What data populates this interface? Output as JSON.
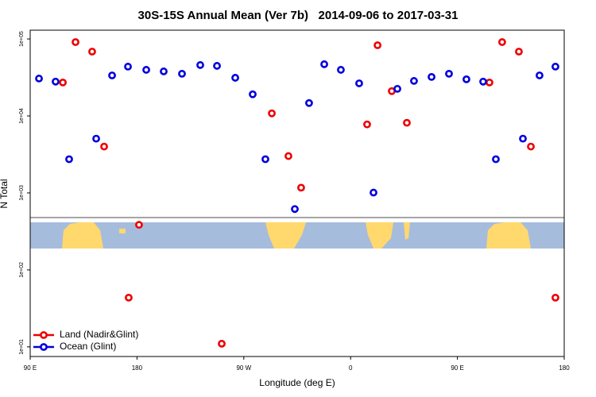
{
  "chart_data": {
    "type": "scatter",
    "title": "30S-15S Annual Mean (Ver 7b)   2014-09-06 to 2017-03-31",
    "x_label": "Longitude (deg E)",
    "y_label": "N Total",
    "xlim": [
      90,
      540
    ],
    "xticks": [
      {
        "value": 90,
        "label": "90 E"
      },
      180,
      {
        "value": 270,
        "label": "90 W"
      },
      {
        "value": 360,
        "label": "0"
      },
      {
        "value": 450,
        "label": "90 E"
      },
      {
        "value": 540,
        "label": "180"
      }
    ],
    "ylim": [
      7.5,
      130000
    ],
    "log_y": true,
    "yticks": [
      {
        "value": 10,
        "label": "1e+01"
      },
      {
        "value": 100,
        "label": "1e+02"
      },
      {
        "value": 1000,
        "label": "1e+03"
      },
      {
        "value": 10000,
        "label": "1e+04"
      },
      {
        "value": 100000,
        "label": "1e+05"
      }
    ],
    "legend": "lower left",
    "series": [
      {
        "name": "Land (Nadir&Glint)",
        "color": "#ee0000",
        "x": [
          117.5,
          128.2,
          142.2,
          152.3,
          173.0,
          181.7,
          251.4,
          293.6,
          307.6,
          318.3,
          373.9,
          382.7,
          394.7,
          407.4,
          477.0,
          487.7,
          501.8,
          511.9,
          532.6
        ],
        "values": [
          27200,
          91000,
          68500,
          4000,
          43.6,
          385,
          11,
          10800,
          3010,
          1170,
          7760,
          82800,
          21000,
          8150,
          27200,
          91000,
          68500,
          4000,
          43.6
        ]
      },
      {
        "name": "Ocean (Glint)",
        "color": "#0000dd",
        "x": [
          97.4,
          111.4,
          122.8,
          145.6,
          159.0,
          172.4,
          187.8,
          202.5,
          217.9,
          233.3,
          247.4,
          262.8,
          277.5,
          288.2,
          313.0,
          325.0,
          337.8,
          351.8,
          367.2,
          379.3,
          399.4,
          413.4,
          428.2,
          442.9,
          457.6,
          471.7,
          482.4,
          505.2,
          519.2,
          532.6
        ],
        "values": [
          30600,
          27900,
          2740,
          5070,
          33600,
          43700,
          39700,
          37900,
          35300,
          45800,
          44700,
          31300,
          19100,
          2740,
          617,
          14700,
          46900,
          39700,
          26500,
          1010,
          22500,
          28500,
          32100,
          35300,
          29900,
          27900,
          2740,
          5070,
          33600,
          43700
        ]
      }
    ]
  }
}
